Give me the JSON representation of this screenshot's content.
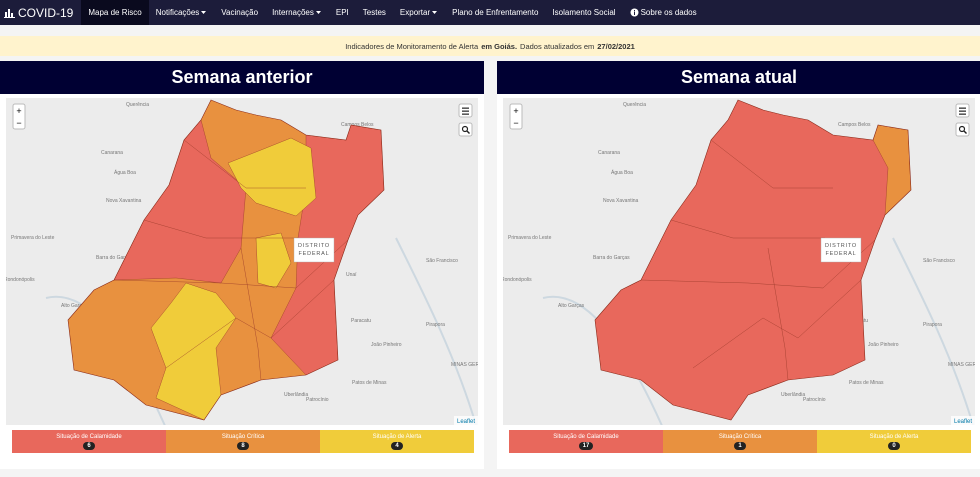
{
  "navbar": {
    "brand": "COVID-19",
    "items": [
      {
        "label": "Mapa de Risco",
        "active": true
      },
      {
        "label": "Notificações",
        "dropdown": true
      },
      {
        "label": "Vacinação"
      },
      {
        "label": "Internações",
        "dropdown": true
      },
      {
        "label": "EPI"
      },
      {
        "label": "Testes"
      },
      {
        "label": "Exportar",
        "dropdown": true
      },
      {
        "label": "Plano de Enfrentamento"
      },
      {
        "label": "Isolamento Social"
      },
      {
        "label": "Sobre os dados",
        "icon": "info"
      }
    ]
  },
  "alert": {
    "text_before": "Indicadores de Monitoramento de Alerta",
    "text_bold": "em Goiás.",
    "text_after": "Dados atualizados em",
    "date": "27/02/2021"
  },
  "map_labels": [
    "Querência",
    "Canarana",
    "Água Boa",
    "Nova Xavantina",
    "Primavera do Leste",
    "Barra do Garças",
    "Rondonópolis",
    "Alto Garças",
    "São Francisco",
    "Paracatu",
    "João Pinheiro",
    "Pirapora",
    "MINAS GERAIS",
    "Patos de Minas",
    "Uberlândia",
    "Patrocínio",
    "Campos Belos",
    "Unaí"
  ],
  "map_controls": {
    "zoom_in": "+",
    "zoom_out": "−",
    "attribution": "Leaflet",
    "district": "DISTRITO FEDERAL"
  },
  "panels": [
    {
      "title": "Semana anterior",
      "legend": [
        {
          "label": "Situação de Calamidade",
          "count": 6,
          "color": "#e8685c"
        },
        {
          "label": "Situação Crítica",
          "count": 8,
          "color": "#e8913f"
        },
        {
          "label": "Situação de Alerta",
          "count": 4,
          "color": "#f0cc3a"
        }
      ]
    },
    {
      "title": "Semana atual",
      "legend": [
        {
          "label": "Situação de Calamidade",
          "count": 17,
          "color": "#e8685c"
        },
        {
          "label": "Situação Crítica",
          "count": 1,
          "color": "#e8913f"
        },
        {
          "label": "Situação de Alerta",
          "count": 0,
          "color": "#f0cc3a"
        }
      ]
    }
  ]
}
